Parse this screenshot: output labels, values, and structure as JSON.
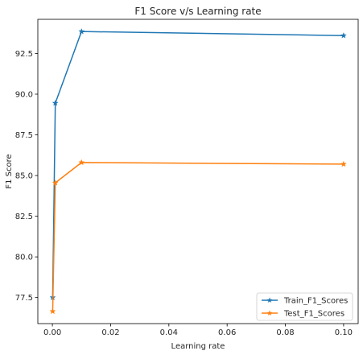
{
  "chart_data": {
    "type": "line",
    "title": "F1 Score v/s Learning rate",
    "xlabel": "Learning rate",
    "ylabel": "F1 Score",
    "xlim": [
      -0.005,
      0.105
    ],
    "ylim": [
      75.9,
      94.6
    ],
    "x_ticks": [
      0.0,
      0.02,
      0.04,
      0.06,
      0.08,
      0.1
    ],
    "x_tick_labels": [
      "0.00",
      "0.02",
      "0.04",
      "0.06",
      "0.08",
      "0.10"
    ],
    "y_ticks": [
      77.5,
      80.0,
      82.5,
      85.0,
      87.5,
      90.0,
      92.5
    ],
    "y_tick_labels": [
      "77.5",
      "80.0",
      "82.5",
      "85.0",
      "87.5",
      "90.0",
      "92.5"
    ],
    "grid": false,
    "legend_position": "lower-right",
    "x": [
      0.0001,
      0.001,
      0.01,
      0.1
    ],
    "series": [
      {
        "name": "Train_F1_Scores",
        "color": "#1f77b4",
        "marker": "star",
        "values": [
          77.5,
          89.45,
          93.85,
          93.6
        ]
      },
      {
        "name": "Test_F1_Scores",
        "color": "#ff7f0e",
        "marker": "star",
        "values": [
          76.65,
          84.55,
          85.8,
          85.7
        ]
      }
    ]
  }
}
